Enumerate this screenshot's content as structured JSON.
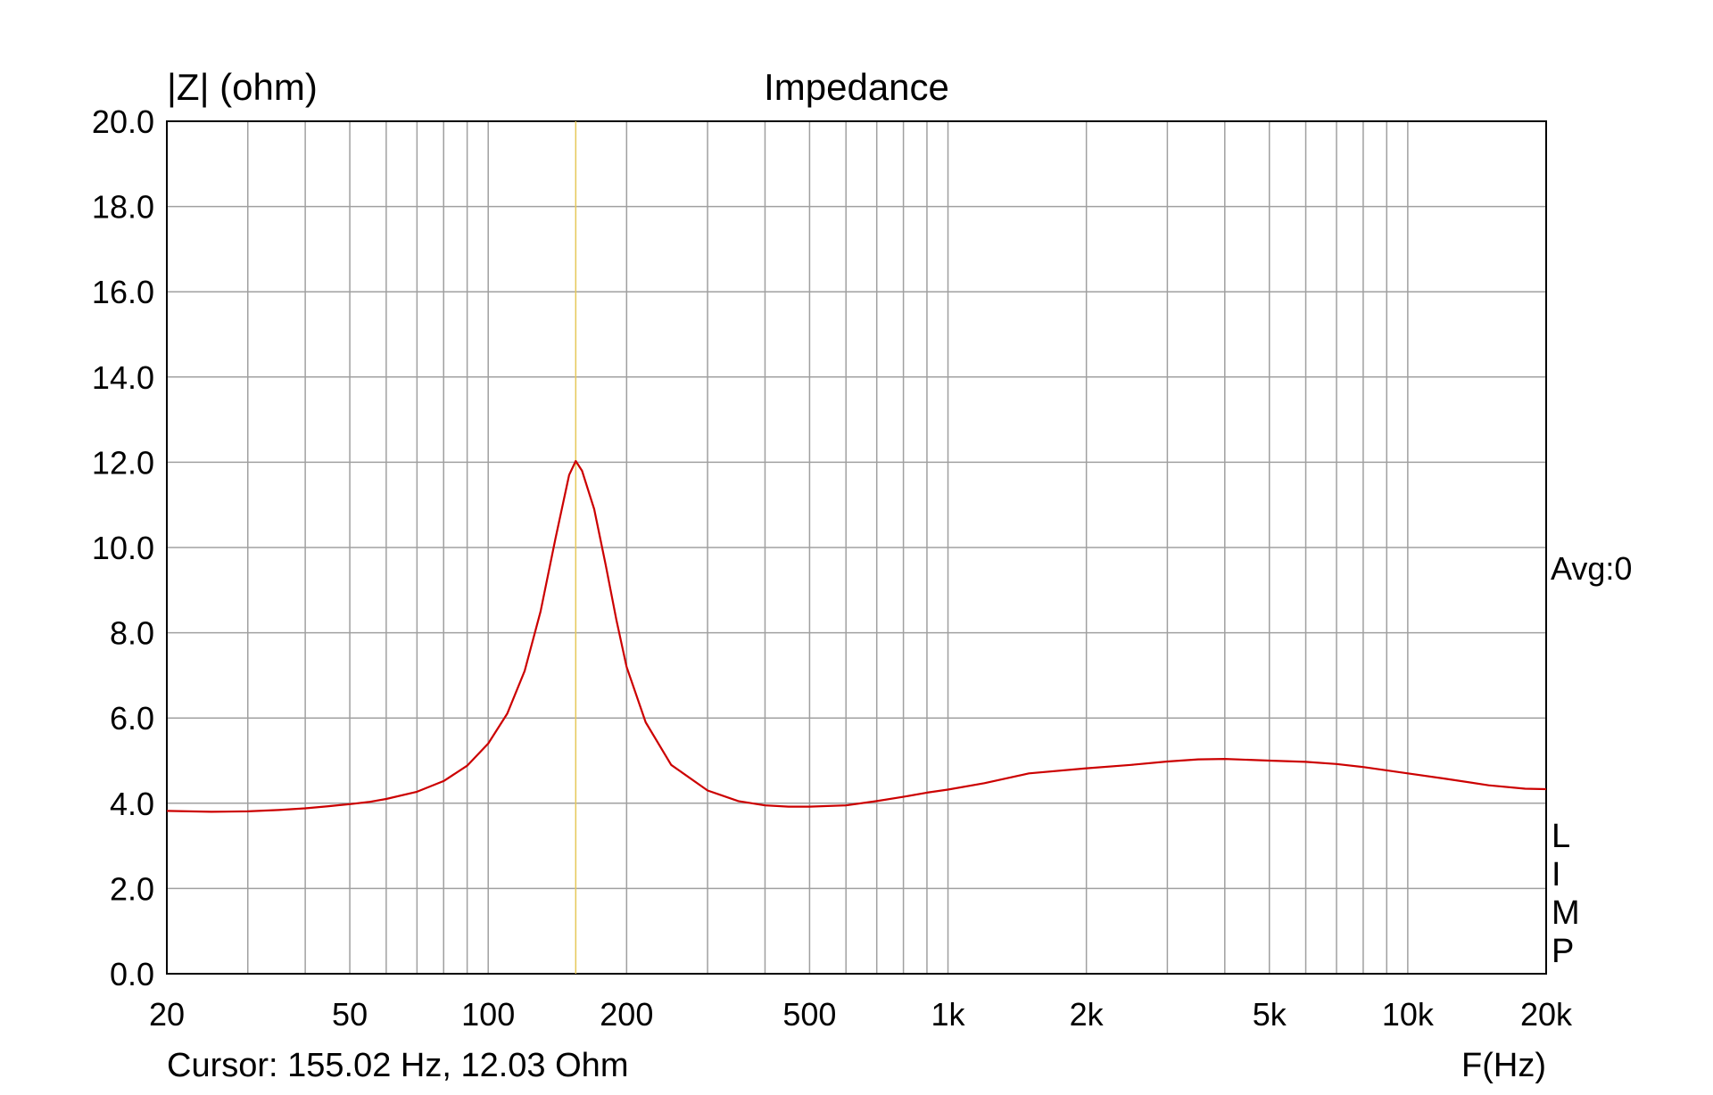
{
  "chart_data": {
    "type": "line",
    "title": "Impedance",
    "ylabel": "|Z| (ohm)",
    "xlabel": "F(Hz)",
    "x_scale": "log",
    "xlim": [
      20,
      20000
    ],
    "ylim": [
      0,
      20
    ],
    "grid": true,
    "y_ticks": [
      "0.0",
      "2.0",
      "4.0",
      "6.0",
      "8.0",
      "10.0",
      "12.0",
      "14.0",
      "16.0",
      "18.0",
      "20.0"
    ],
    "x_ticks": [
      {
        "value": 20,
        "label": "20"
      },
      {
        "value": 50,
        "label": "50"
      },
      {
        "value": 100,
        "label": "100"
      },
      {
        "value": 200,
        "label": "200"
      },
      {
        "value": 500,
        "label": "500"
      },
      {
        "value": 1000,
        "label": "1k"
      },
      {
        "value": 2000,
        "label": "2k"
      },
      {
        "value": 5000,
        "label": "5k"
      },
      {
        "value": 10000,
        "label": "10k"
      },
      {
        "value": 20000,
        "label": "20k"
      }
    ],
    "cursor": {
      "frequency_hz": 155.02,
      "impedance_ohm": 12.03,
      "text": "Cursor: 155.02 Hz, 12.03 Ohm",
      "color": "#e6c85a"
    },
    "side_labels": {
      "avg": "Avg:0",
      "letters": [
        "L",
        "I",
        "M",
        "P"
      ]
    },
    "series": [
      {
        "color": "#cc0000",
        "points": [
          [
            20,
            3.82
          ],
          [
            25,
            3.8
          ],
          [
            30,
            3.81
          ],
          [
            35,
            3.84
          ],
          [
            40,
            3.88
          ],
          [
            45,
            3.93
          ],
          [
            50,
            3.98
          ],
          [
            55,
            4.03
          ],
          [
            60,
            4.1
          ],
          [
            70,
            4.27
          ],
          [
            80,
            4.52
          ],
          [
            90,
            4.88
          ],
          [
            100,
            5.4
          ],
          [
            110,
            6.1
          ],
          [
            120,
            7.1
          ],
          [
            130,
            8.5
          ],
          [
            140,
            10.2
          ],
          [
            150,
            11.7
          ],
          [
            155.02,
            12.03
          ],
          [
            160,
            11.8
          ],
          [
            170,
            10.9
          ],
          [
            180,
            9.6
          ],
          [
            190,
            8.3
          ],
          [
            200,
            7.2
          ],
          [
            220,
            5.9
          ],
          [
            250,
            4.9
          ],
          [
            300,
            4.3
          ],
          [
            350,
            4.05
          ],
          [
            400,
            3.95
          ],
          [
            450,
            3.92
          ],
          [
            500,
            3.92
          ],
          [
            600,
            3.95
          ],
          [
            700,
            4.05
          ],
          [
            800,
            4.15
          ],
          [
            900,
            4.25
          ],
          [
            1000,
            4.32
          ],
          [
            1200,
            4.47
          ],
          [
            1500,
            4.7
          ],
          [
            2000,
            4.82
          ],
          [
            2500,
            4.9
          ],
          [
            3000,
            4.98
          ],
          [
            3500,
            5.03
          ],
          [
            4000,
            5.04
          ],
          [
            5000,
            5.0
          ],
          [
            6000,
            4.97
          ],
          [
            7000,
            4.92
          ],
          [
            8000,
            4.85
          ],
          [
            10000,
            4.7
          ],
          [
            12000,
            4.58
          ],
          [
            15000,
            4.42
          ],
          [
            18000,
            4.34
          ],
          [
            20000,
            4.33
          ]
        ]
      }
    ]
  }
}
